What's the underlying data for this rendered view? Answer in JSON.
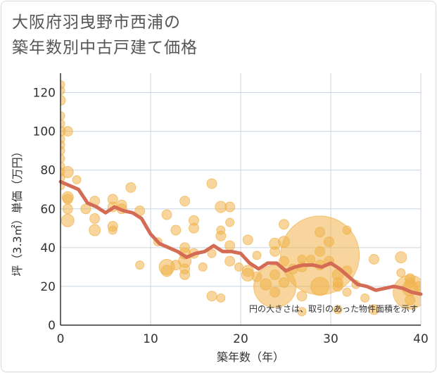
{
  "title_lines": [
    "大阪府羽曳野市西浦の",
    "築年数別中古戸建て価格"
  ],
  "chart_data": {
    "type": "scatter",
    "title": "大阪府羽曳野市西浦の築年数別中古戸建て価格",
    "xlabel": "築年数（年）",
    "ylabel": "坪（3.3㎡）単価（万円）",
    "xlim": [
      0,
      40
    ],
    "ylim": [
      0,
      130
    ],
    "xticks": [
      0,
      10,
      20,
      30,
      40
    ],
    "yticks": [
      0,
      20,
      40,
      60,
      80,
      100,
      120
    ],
    "grid": true,
    "note": "円の大きさは、取引のあった物件面積を示す",
    "colors": {
      "bubble": "#f1b24a",
      "line": "#d36b55",
      "grid": "#c9d5e0",
      "axis": "#333333"
    },
    "series": [
      {
        "name": "average",
        "type": "line",
        "x": [
          0,
          1,
          2,
          3,
          4,
          5,
          6,
          7,
          8,
          9,
          10,
          11,
          12,
          13,
          14,
          15,
          16,
          17,
          18,
          19,
          20,
          21,
          22,
          23,
          24,
          25,
          26,
          27,
          28,
          29,
          30,
          31,
          32,
          33,
          34,
          35,
          36,
          37,
          38,
          39,
          40
        ],
        "y": [
          74,
          72,
          70,
          63,
          61,
          58,
          61,
          59,
          58,
          55,
          47,
          42,
          40,
          38,
          35,
          37,
          38,
          41,
          38,
          38,
          37,
          32,
          29,
          32,
          32,
          28,
          30,
          31,
          31,
          30,
          32,
          29,
          25,
          21,
          20,
          18,
          19,
          20,
          19,
          17,
          16
        ]
      },
      {
        "name": "transactions",
        "type": "bubble",
        "points": [
          {
            "x": 0,
            "y": 124,
            "r": 6
          },
          {
            "x": 0,
            "y": 121,
            "r": 6
          },
          {
            "x": 0,
            "y": 116,
            "r": 7
          },
          {
            "x": 0,
            "y": 108,
            "r": 6
          },
          {
            "x": 0,
            "y": 104,
            "r": 6
          },
          {
            "x": 0,
            "y": 100,
            "r": 7
          },
          {
            "x": 0,
            "y": 96,
            "r": 6
          },
          {
            "x": 0,
            "y": 93,
            "r": 6
          },
          {
            "x": 0,
            "y": 90,
            "r": 6
          },
          {
            "x": 0,
            "y": 86,
            "r": 6
          },
          {
            "x": 0,
            "y": 82,
            "r": 6
          },
          {
            "x": 0,
            "y": 79,
            "r": 6
          },
          {
            "x": 0,
            "y": 76,
            "r": 6
          },
          {
            "x": 0,
            "y": 72,
            "r": 6
          },
          {
            "x": 0.8,
            "y": 100,
            "r": 7
          },
          {
            "x": 0.8,
            "y": 79,
            "r": 8
          },
          {
            "x": 0.8,
            "y": 66,
            "r": 8
          },
          {
            "x": 0.8,
            "y": 65,
            "r": 7
          },
          {
            "x": 0.8,
            "y": 60,
            "r": 7
          },
          {
            "x": 0.8,
            "y": 54,
            "r": 9
          },
          {
            "x": 1.8,
            "y": 75,
            "r": 6
          },
          {
            "x": 2.8,
            "y": 60,
            "r": 7
          },
          {
            "x": 3.8,
            "y": 64,
            "r": 7
          },
          {
            "x": 3.8,
            "y": 55,
            "r": 7
          },
          {
            "x": 3.8,
            "y": 49,
            "r": 8
          },
          {
            "x": 5.8,
            "y": 65,
            "r": 7
          },
          {
            "x": 5.8,
            "y": 61,
            "r": 7
          },
          {
            "x": 5.8,
            "y": 51,
            "r": 7
          },
          {
            "x": 5.8,
            "y": 49,
            "r": 6
          },
          {
            "x": 6.8,
            "y": 62,
            "r": 7
          },
          {
            "x": 6.8,
            "y": 60,
            "r": 7
          },
          {
            "x": 7.8,
            "y": 71,
            "r": 7
          },
          {
            "x": 8.8,
            "y": 59,
            "r": 7
          },
          {
            "x": 8.8,
            "y": 31,
            "r": 6
          },
          {
            "x": 10.8,
            "y": 43,
            "r": 6
          },
          {
            "x": 11.8,
            "y": 57,
            "r": 7
          },
          {
            "x": 11.8,
            "y": 30,
            "r": 11
          },
          {
            "x": 11.8,
            "y": 28,
            "r": 8
          },
          {
            "x": 12.8,
            "y": 49,
            "r": 7
          },
          {
            "x": 12.8,
            "y": 31,
            "r": 7
          },
          {
            "x": 13.8,
            "y": 64,
            "r": 7
          },
          {
            "x": 13.8,
            "y": 40,
            "r": 7
          },
          {
            "x": 13.8,
            "y": 37,
            "r": 8
          },
          {
            "x": 13.8,
            "y": 33,
            "r": 9
          },
          {
            "x": 13.8,
            "y": 29,
            "r": 7
          },
          {
            "x": 13.8,
            "y": 26,
            "r": 7
          },
          {
            "x": 14.8,
            "y": 54,
            "r": 7
          },
          {
            "x": 14.8,
            "y": 50,
            "r": 7
          },
          {
            "x": 14.8,
            "y": 37,
            "r": 7
          },
          {
            "x": 15.8,
            "y": 30,
            "r": 6
          },
          {
            "x": 16.8,
            "y": 73,
            "r": 7
          },
          {
            "x": 16.8,
            "y": 37,
            "r": 6
          },
          {
            "x": 16.8,
            "y": 15,
            "r": 7
          },
          {
            "x": 17.8,
            "y": 61,
            "r": 8
          },
          {
            "x": 17.8,
            "y": 49,
            "r": 6
          },
          {
            "x": 17.8,
            "y": 46,
            "r": 7
          },
          {
            "x": 17.8,
            "y": 14,
            "r": 6
          },
          {
            "x": 18.8,
            "y": 61,
            "r": 7
          },
          {
            "x": 18.8,
            "y": 53,
            "r": 6
          },
          {
            "x": 18.8,
            "y": 41,
            "r": 7
          },
          {
            "x": 18.8,
            "y": 33,
            "r": 7
          },
          {
            "x": 19.8,
            "y": 30,
            "r": 6
          },
          {
            "x": 20.8,
            "y": 44,
            "r": 7
          },
          {
            "x": 20.8,
            "y": 28,
            "r": 8
          },
          {
            "x": 20.8,
            "y": 26,
            "r": 9
          },
          {
            "x": 21.8,
            "y": 36,
            "r": 6
          },
          {
            "x": 21.8,
            "y": 25,
            "r": 7
          },
          {
            "x": 22.8,
            "y": 21,
            "r": 8
          },
          {
            "x": 23.8,
            "y": 42,
            "r": 8
          },
          {
            "x": 23.8,
            "y": 38,
            "r": 7
          },
          {
            "x": 23.8,
            "y": 26,
            "r": 7
          },
          {
            "x": 23.8,
            "y": 20,
            "r": 30
          },
          {
            "x": 23.8,
            "y": 17,
            "r": 7
          },
          {
            "x": 24.8,
            "y": 52,
            "r": 7
          },
          {
            "x": 24.8,
            "y": 43,
            "r": 8
          },
          {
            "x": 24.8,
            "y": 33,
            "r": 7
          },
          {
            "x": 24.8,
            "y": 22,
            "r": 7
          },
          {
            "x": 25.8,
            "y": 29,
            "r": 7
          },
          {
            "x": 26.8,
            "y": 34,
            "r": 6
          },
          {
            "x": 26.8,
            "y": 30,
            "r": 7
          },
          {
            "x": 26.8,
            "y": 15,
            "r": 7
          },
          {
            "x": 26.8,
            "y": 7,
            "r": 6
          },
          {
            "x": 27.8,
            "y": 34,
            "r": 6
          },
          {
            "x": 28.8,
            "y": 48,
            "r": 7
          },
          {
            "x": 28.8,
            "y": 36,
            "r": 56
          },
          {
            "x": 28.8,
            "y": 38,
            "r": 7
          },
          {
            "x": 28.8,
            "y": 31,
            "r": 7
          },
          {
            "x": 28.8,
            "y": 20,
            "r": 13
          },
          {
            "x": 29.8,
            "y": 43,
            "r": 7
          },
          {
            "x": 29.8,
            "y": 33,
            "r": 7
          },
          {
            "x": 30.8,
            "y": 26,
            "r": 8
          },
          {
            "x": 30.8,
            "y": 22,
            "r": 7
          },
          {
            "x": 30.8,
            "y": 20,
            "r": 7
          },
          {
            "x": 30.8,
            "y": 8,
            "r": 6
          },
          {
            "x": 31.8,
            "y": 49,
            "r": 6
          },
          {
            "x": 31.8,
            "y": 28,
            "r": 7
          },
          {
            "x": 31.8,
            "y": 17,
            "r": 6
          },
          {
            "x": 32.8,
            "y": 21,
            "r": 6
          },
          {
            "x": 33.8,
            "y": 14,
            "r": 6
          },
          {
            "x": 34.8,
            "y": 34,
            "r": 7
          },
          {
            "x": 34.8,
            "y": 8,
            "r": 7
          },
          {
            "x": 37.8,
            "y": 35,
            "r": 8
          },
          {
            "x": 37.8,
            "y": 27,
            "r": 6
          },
          {
            "x": 38.8,
            "y": 24,
            "r": 7
          },
          {
            "x": 38.8,
            "y": 22,
            "r": 7
          },
          {
            "x": 38.8,
            "y": 19,
            "r": 11
          },
          {
            "x": 38.8,
            "y": 17,
            "r": 24
          },
          {
            "x": 38.8,
            "y": 13,
            "r": 7
          },
          {
            "x": 39.8,
            "y": 20,
            "r": 7
          }
        ]
      }
    ]
  }
}
